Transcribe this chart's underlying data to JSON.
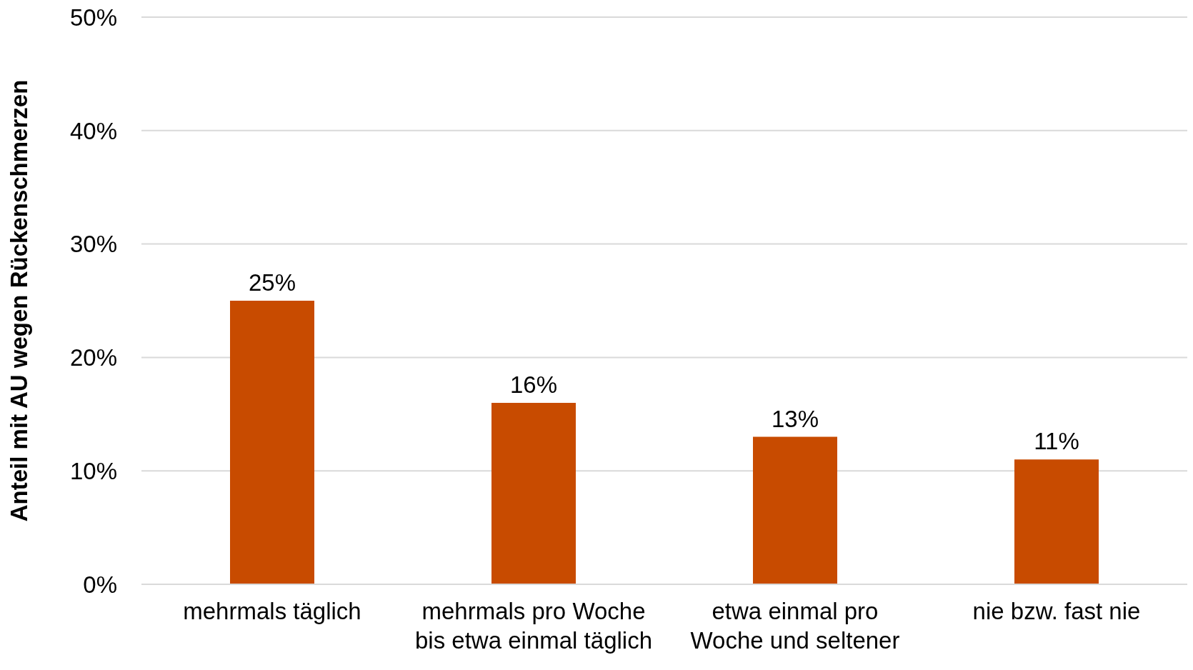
{
  "chart_data": {
    "type": "bar",
    "ylabel": "Anteil mit AU wegen Rückenschmerzen",
    "categories": [
      "mehrmals täglich",
      "mehrmals pro Woche\nbis etwa einmal täglich",
      "etwa einmal pro\nWoche und seltener",
      "nie bzw. fast nie"
    ],
    "values": [
      25,
      16,
      13,
      11
    ],
    "color": "#c84b00",
    "value_labels": [
      "25%",
      "16%",
      "13%",
      "11%"
    ],
    "ylim": [
      0,
      50
    ],
    "yticks": [
      {
        "value": 0,
        "label": "0%"
      },
      {
        "value": 10,
        "label": "10%"
      },
      {
        "value": 20,
        "label": "20%"
      },
      {
        "value": 30,
        "label": "30%"
      },
      {
        "value": 40,
        "label": "40%"
      },
      {
        "value": 50,
        "label": "50%"
      }
    ],
    "grid": "y"
  }
}
